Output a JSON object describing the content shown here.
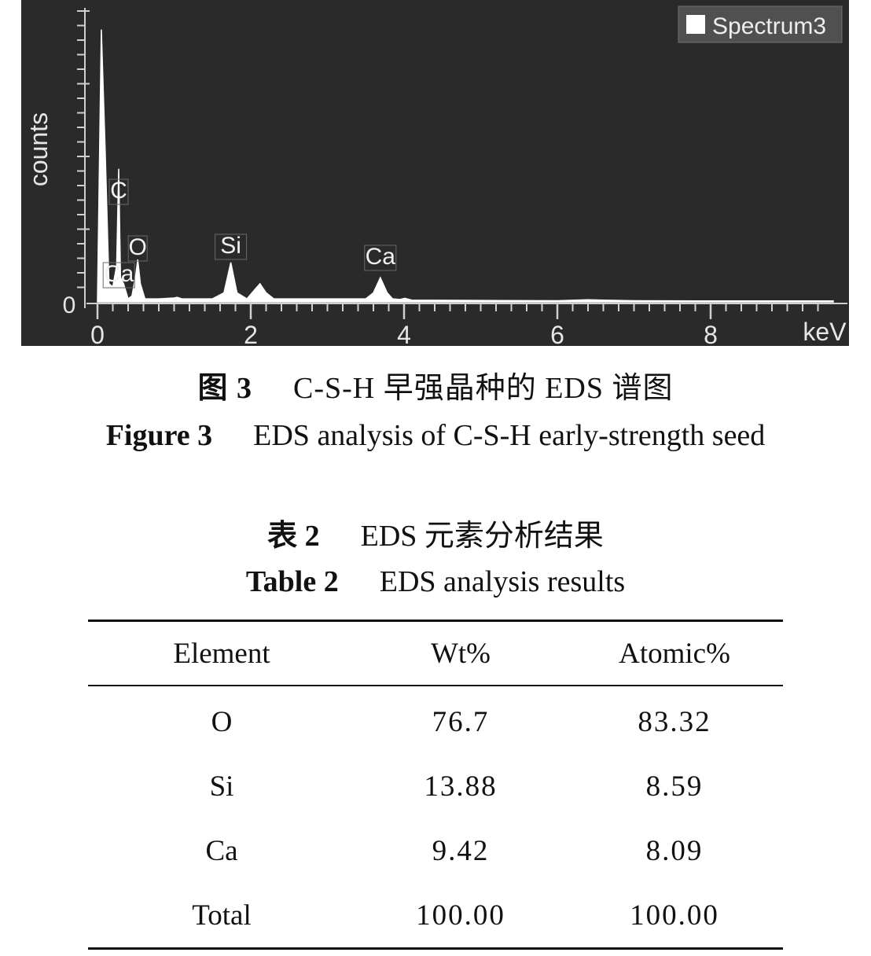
{
  "spectrum": {
    "ylabel": "counts",
    "xunit": "keV",
    "y_zero_label": "0",
    "legend": "Spectrum3",
    "x_ticks": [
      "0",
      "2",
      "4",
      "6",
      "8"
    ],
    "colors": {
      "background": "#2a2a2a",
      "trace": "#ffffff",
      "axis": "#cfcfcf"
    },
    "peak_labels": [
      {
        "text": "C",
        "kev": 0.277
      },
      {
        "text": "O",
        "kev": 0.525
      },
      {
        "text": "Ca",
        "kev": 0.341
      },
      {
        "text": "Si",
        "kev": 1.74
      },
      {
        "text": "Ca",
        "kev": 3.69
      }
    ]
  },
  "chart_data": {
    "type": "line",
    "xlabel": "keV",
    "ylabel": "counts",
    "xlim": [
      0,
      9.6
    ],
    "series": [
      {
        "name": "Spectrum3",
        "x": [
          0.0,
          0.05,
          0.1,
          0.15,
          0.2,
          0.25,
          0.277,
          0.3,
          0.341,
          0.4,
          0.45,
          0.5,
          0.525,
          0.56,
          0.62,
          0.8,
          1.0,
          1.04,
          1.1,
          1.3,
          1.5,
          1.65,
          1.74,
          1.82,
          1.95,
          2.05,
          2.12,
          2.2,
          2.3,
          2.5,
          3.0,
          3.5,
          3.6,
          3.69,
          3.78,
          3.85,
          3.95,
          4.01,
          4.1,
          5.0,
          6.0,
          6.4,
          7.0,
          8.0,
          9.0,
          9.6
        ],
        "y": [
          0,
          90,
          50,
          6,
          5,
          12,
          44,
          8,
          6,
          1,
          2,
          9,
          14,
          6,
          1,
          1,
          1.3,
          1.5,
          1,
          1,
          1,
          3,
          13,
          3,
          1,
          4,
          6,
          3,
          1,
          1,
          1,
          1,
          3,
          8,
          3,
          1,
          0.8,
          1.2,
          0.6,
          0.5,
          0.4,
          0.7,
          0.4,
          0.3,
          0.3,
          0.3
        ]
      }
    ]
  },
  "figure_caption": {
    "cn_label": "图 3",
    "cn_text": "C-S-H 早强晶种的 EDS 谱图",
    "en_label": "Figure 3",
    "en_text": "EDS analysis of C-S-H early-strength seed"
  },
  "table_caption": {
    "cn_label": "表 2",
    "cn_text": "EDS 元素分析结果",
    "en_label": "Table 2",
    "en_text": "EDS analysis results"
  },
  "table": {
    "headers": [
      "Element",
      "Wt%",
      "Atomic%"
    ],
    "rows": [
      [
        "O",
        "76.7",
        "83.32"
      ],
      [
        "Si",
        "13.88",
        "8.59"
      ],
      [
        "Ca",
        "9.42",
        "8.09"
      ],
      [
        "Total",
        "100.00",
        "100.00"
      ]
    ]
  }
}
